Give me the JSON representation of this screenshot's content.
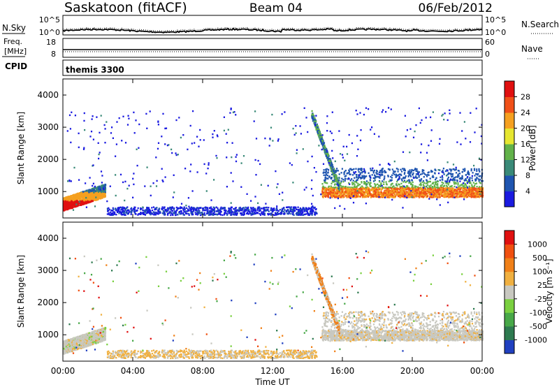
{
  "header": {
    "station": "Saskatoon (fitACF)",
    "beam": "Beam 04",
    "date": "06/Feb/2012"
  },
  "noise_panel": {
    "left_label": "N.Sky",
    "right_label": "N.Search",
    "left_ticks": [
      "10^5",
      "10^0"
    ],
    "right_ticks": [
      "10^5",
      "10^0"
    ]
  },
  "freq_panel": {
    "left_label_1": "Freq.",
    "left_label_2": "[MHz]",
    "right_label": "Nave",
    "left_ticks": [
      "18",
      "8"
    ],
    "right_ticks": [
      "60",
      "0"
    ]
  },
  "cpid_panel": {
    "label": "CPID",
    "value": "themis 3300"
  },
  "x_axis": {
    "label": "Time UT",
    "ticks": [
      "00:00",
      "04:00",
      "08:00",
      "12:00",
      "16:00",
      "20:00",
      "00:00"
    ]
  },
  "chart_data": [
    {
      "type": "heatmap",
      "name": "power",
      "ylabel": "Slant Range [km]",
      "y_ticks": [
        "1000",
        "2000",
        "3000",
        "4000"
      ],
      "ylim": [
        180,
        4500
      ],
      "xlim_hours": [
        0,
        24
      ],
      "colorbar_label": "Power [dB]",
      "colorbar_ticks": [
        "4",
        "8",
        "12",
        "16",
        "20",
        "24",
        "28"
      ],
      "colorbar_colors": [
        "#1a1ae0",
        "#1f55b0",
        "#3a8a78",
        "#62b24a",
        "#e6e630",
        "#f5a020",
        "#f05018",
        "#e01010"
      ]
    },
    {
      "type": "heatmap",
      "name": "velocity",
      "ylabel": "Slant Range [km]",
      "y_ticks": [
        "1000",
        "2000",
        "3000",
        "4000"
      ],
      "ylim": [
        180,
        4500
      ],
      "xlim_hours": [
        0,
        24
      ],
      "colorbar_label": "Velocity [m s⁻¹]",
      "colorbar_ticks": [
        "1000",
        "500",
        "100",
        "25",
        "-25",
        "-100",
        "-500",
        "-1000"
      ],
      "colorbar_colors": [
        "#2040c0",
        "#2e7a50",
        "#48a848",
        "#7ad040",
        "#c8c8c0",
        "#f0b040",
        "#f08018",
        "#f05010",
        "#e01010"
      ]
    }
  ]
}
